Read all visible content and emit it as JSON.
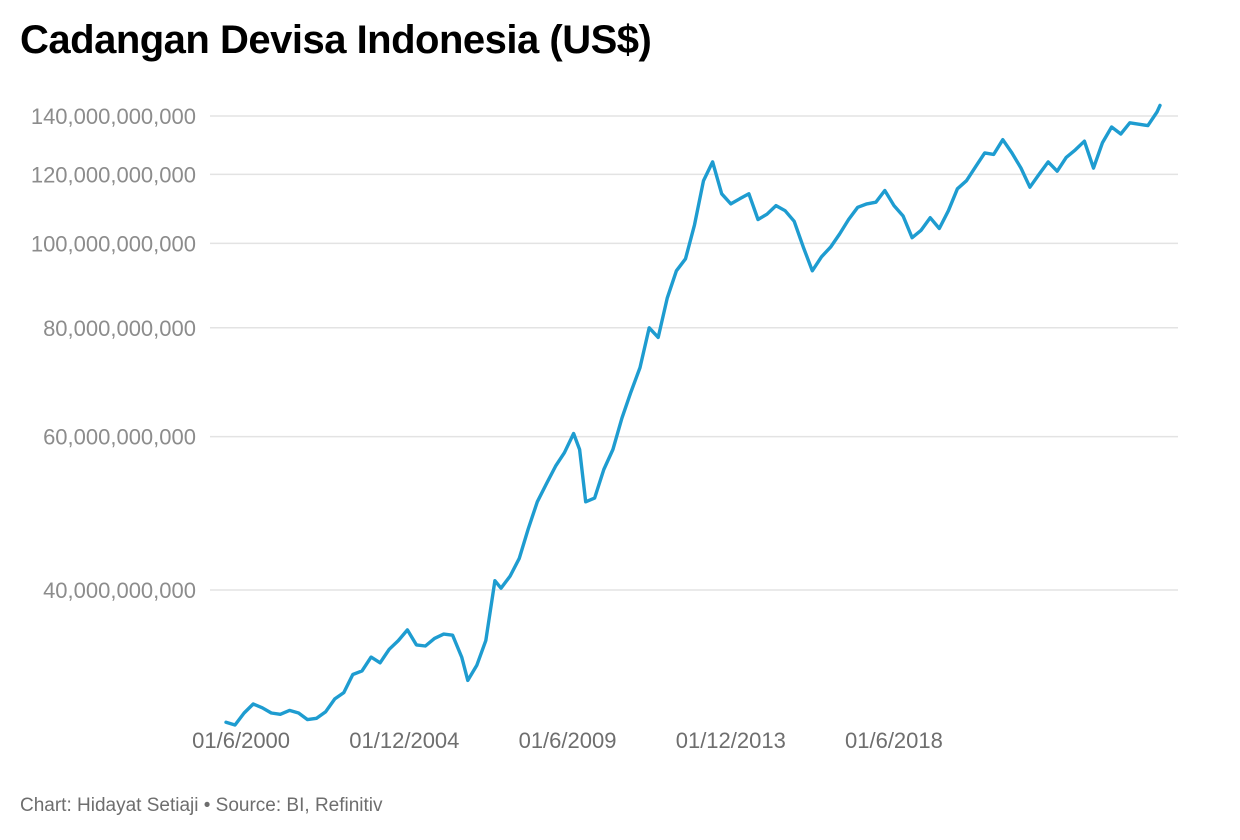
{
  "chart_data": {
    "type": "line",
    "title": "Cadangan Devisa Indonesia (US$)",
    "footer": "Chart: Hidayat Setiaji • Source: BI, Refinitiv",
    "yscale": "log",
    "ylim": [
      28000000000,
      148000000000
    ],
    "y_ticks": [
      {
        "value": 40000000000,
        "label": "40,000,000,000"
      },
      {
        "value": 60000000000,
        "label": "60,000,000,000"
      },
      {
        "value": 80000000000,
        "label": "80,000,000,000"
      },
      {
        "value": 100000000000,
        "label": "100,000,000,000"
      },
      {
        "value": 120000000000,
        "label": "120,000,000,000"
      },
      {
        "value": 140000000000,
        "label": "140,000,000,000"
      }
    ],
    "x_ticks": [
      {
        "date": "2000-06-01",
        "label": "01/6/2000"
      },
      {
        "date": "2004-12-01",
        "label": "01/12/2004"
      },
      {
        "date": "2009-06-01",
        "label": "01/6/2009"
      },
      {
        "date": "2013-12-01",
        "label": "01/12/2013"
      },
      {
        "date": "2018-06-01",
        "label": "01/6/2018"
      }
    ],
    "grid": true,
    "series": [
      {
        "color": "#1e9cd0",
        "points": [
          [
            "2000-01-01",
            28200000000.0
          ],
          [
            "2000-04-01",
            28000000000.0
          ],
          [
            "2000-07-01",
            28900000000.0
          ],
          [
            "2000-10-01",
            29600000000.0
          ],
          [
            "2001-01-01",
            29300000000.0
          ],
          [
            "2001-04-01",
            28900000000.0
          ],
          [
            "2001-07-01",
            28800000000.0
          ],
          [
            "2001-10-01",
            29100000000.0
          ],
          [
            "2002-01-01",
            28900000000.0
          ],
          [
            "2002-04-01",
            28400000000.0
          ],
          [
            "2002-07-01",
            28500000000.0
          ],
          [
            "2002-10-01",
            29000000000.0
          ],
          [
            "2003-01-01",
            30000000000.0
          ],
          [
            "2003-04-01",
            30500000000.0
          ],
          [
            "2003-07-01",
            32000000000.0
          ],
          [
            "2003-10-01",
            32300000000.0
          ],
          [
            "2004-01-01",
            33500000000.0
          ],
          [
            "2004-04-01",
            33000000000.0
          ],
          [
            "2004-07-01",
            34200000000.0
          ],
          [
            "2004-10-01",
            35000000000.0
          ],
          [
            "2005-01-01",
            36000000000.0
          ],
          [
            "2005-04-01",
            34600000000.0
          ],
          [
            "2005-07-01",
            34500000000.0
          ],
          [
            "2005-10-01",
            35200000000.0
          ],
          [
            "2006-01-01",
            35600000000.0
          ],
          [
            "2006-04-01",
            35500000000.0
          ],
          [
            "2006-07-01",
            33500000000.0
          ],
          [
            "2006-09-01",
            31500000000.0
          ],
          [
            "2006-12-01",
            32800000000.0
          ],
          [
            "2007-03-01",
            35000000000.0
          ],
          [
            "2007-06-01",
            41000000000.0
          ],
          [
            "2007-08-01",
            40200000000.0
          ],
          [
            "2007-11-01",
            41500000000.0
          ],
          [
            "2008-02-01",
            43500000000.0
          ],
          [
            "2008-05-01",
            47000000000.0
          ],
          [
            "2008-08-01",
            50500000000.0
          ],
          [
            "2008-11-01",
            53000000000.0
          ],
          [
            "2009-02-01",
            55500000000.0
          ],
          [
            "2009-05-01",
            57500000000.0
          ],
          [
            "2009-08-01",
            60500000000.0
          ],
          [
            "2009-10-01",
            58000000000.0
          ],
          [
            "2009-12-01",
            50500000000.0
          ],
          [
            "2010-03-01",
            51000000000.0
          ],
          [
            "2010-06-01",
            55000000000.0
          ],
          [
            "2010-09-01",
            58000000000.0
          ],
          [
            "2010-12-01",
            63000000000.0
          ],
          [
            "2011-03-01",
            67500000000.0
          ],
          [
            "2011-06-01",
            72000000000.0
          ],
          [
            "2011-09-01",
            80000000000.0
          ],
          [
            "2011-12-01",
            78000000000.0
          ],
          [
            "2012-03-01",
            86500000000.0
          ],
          [
            "2012-06-01",
            93000000000.0
          ],
          [
            "2012-09-01",
            96000000000.0
          ],
          [
            "2012-12-01",
            105000000000.0
          ],
          [
            "2013-03-01",
            118000000000.0
          ],
          [
            "2013-06-01",
            124000000000.0
          ],
          [
            "2013-09-01",
            114000000000.0
          ],
          [
            "2013-12-01",
            111000000000.0
          ],
          [
            "2014-03-01",
            112500000000.0
          ],
          [
            "2014-06-01",
            114000000000.0
          ],
          [
            "2014-09-01",
            106500000000.0
          ],
          [
            "2014-12-01",
            108000000000.0
          ],
          [
            "2015-03-01",
            110500000000.0
          ],
          [
            "2015-06-01",
            109000000000.0
          ],
          [
            "2015-09-01",
            106000000000.0
          ],
          [
            "2015-12-01",
            99000000000.0
          ],
          [
            "2016-03-01",
            93000000000.0
          ],
          [
            "2016-06-01",
            96500000000.0
          ],
          [
            "2016-09-01",
            99000000000.0
          ],
          [
            "2016-12-01",
            102500000000.0
          ],
          [
            "2017-03-01",
            106500000000.0
          ],
          [
            "2017-06-01",
            110000000000.0
          ],
          [
            "2017-09-01",
            111000000000.0
          ],
          [
            "2017-12-01",
            111500000000.0
          ],
          [
            "2018-03-01",
            115000000000.0
          ],
          [
            "2018-06-01",
            110500000000.0
          ],
          [
            "2018-09-01",
            107500000000.0
          ],
          [
            "2018-12-01",
            101500000000.0
          ],
          [
            "2019-03-01",
            103500000000.0
          ],
          [
            "2019-06-01",
            107000000000.0
          ],
          [
            "2019-09-01",
            104000000000.0
          ],
          [
            "2019-12-01",
            109000000000.0
          ],
          [
            "2020-03-01",
            115500000000.0
          ],
          [
            "2020-06-01",
            118000000000.0
          ],
          [
            "2020-09-01",
            122500000000.0
          ],
          [
            "2020-12-01",
            127000000000.0
          ],
          [
            "2021-03-01",
            126500000000.0
          ],
          [
            "2021-06-01",
            131500000000.0
          ],
          [
            "2021-09-01",
            127000000000.0
          ],
          [
            "2021-12-01",
            122000000000.0
          ],
          [
            "2022-03-01",
            116000000000.0
          ],
          [
            "2022-06-01",
            120000000000.0
          ],
          [
            "2022-09-01",
            124000000000.0
          ],
          [
            "2022-12-01",
            121000000000.0
          ],
          [
            "2023-03-01",
            125500000000.0
          ],
          [
            "2023-06-01",
            128000000000.0
          ],
          [
            "2023-09-01",
            131000000000.0
          ],
          [
            "2023-12-01",
            122000000000.0
          ],
          [
            "2024-03-01",
            130500000000.0
          ],
          [
            "2024-06-01",
            136000000000.0
          ],
          [
            "2024-09-01",
            133500000000.0
          ],
          [
            "2024-12-01",
            137500000000.0
          ],
          [
            "2025-03-01",
            137000000000.0
          ],
          [
            "2025-06-01",
            136500000000.0
          ],
          [
            "2025-09-01",
            141500000000.0
          ],
          [
            "2025-10-01",
            144000000000.0
          ]
        ]
      }
    ]
  }
}
